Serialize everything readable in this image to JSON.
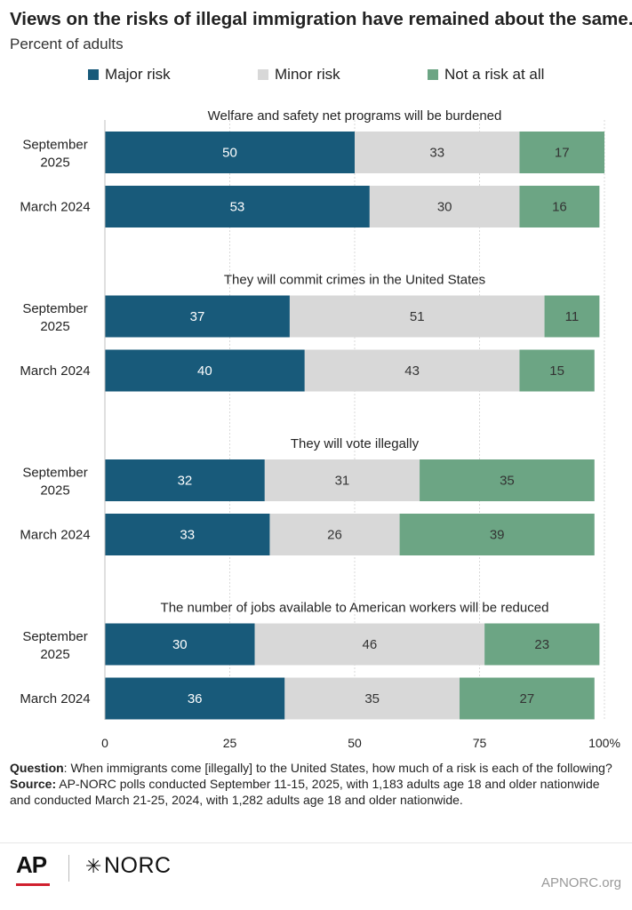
{
  "chart_data": {
    "type": "bar",
    "orientation": "horizontal",
    "stacked": true,
    "title": "Views on the risks of illegal immigration have remained about the same.",
    "subtitle": "Percent of adults",
    "legend": [
      {
        "name": "Major risk",
        "color": "#185a7a"
      },
      {
        "name": "Minor risk",
        "color": "#d8d8d8"
      },
      {
        "name": "Not a risk at all",
        "color": "#6ca584"
      }
    ],
    "legend_position": "top",
    "xlim": [
      0,
      100
    ],
    "x_ticks": [
      "0",
      "25",
      "50",
      "75",
      "100%"
    ],
    "x_tick_values": [
      0,
      25,
      50,
      75,
      100
    ],
    "grid": true,
    "panels": [
      {
        "title": "Welfare and safety net programs will be burdened",
        "rows": [
          {
            "label": "September 2025",
            "values": [
              50,
              33,
              17
            ]
          },
          {
            "label": "March 2024",
            "values": [
              53,
              30,
              16
            ]
          }
        ]
      },
      {
        "title": "They will commit crimes in the United States",
        "rows": [
          {
            "label": "September 2025",
            "values": [
              37,
              51,
              11
            ]
          },
          {
            "label": "March 2024",
            "values": [
              40,
              43,
              15
            ]
          }
        ]
      },
      {
        "title": "They will vote illegally",
        "rows": [
          {
            "label": "September 2025",
            "values": [
              32,
              31,
              35
            ]
          },
          {
            "label": "March 2024",
            "values": [
              33,
              26,
              39
            ]
          }
        ]
      },
      {
        "title": "The number of jobs available to American workers will be reduced",
        "rows": [
          {
            "label": "September 2025",
            "values": [
              30,
              46,
              23
            ]
          },
          {
            "label": "March 2024",
            "values": [
              36,
              35,
              27
            ]
          }
        ]
      }
    ]
  },
  "notes": {
    "question_label": "Question",
    "question_text": ": When immigrants come [illegally] to the United States, how much of a risk is each of the following?",
    "source_label": "Source:",
    "source_text": " AP-NORC polls conducted September 11-15, 2025, with 1,183 adults age 18 and older nationwide and conducted March 21-25, 2024, with 1,282 adults age 18 and older nationwide."
  },
  "footer": {
    "ap_logo": "AP",
    "norc_logo": "NORC",
    "site": "APNORC.org"
  },
  "colors": {
    "major_text": "#ffffff",
    "other_text": "#333333"
  }
}
